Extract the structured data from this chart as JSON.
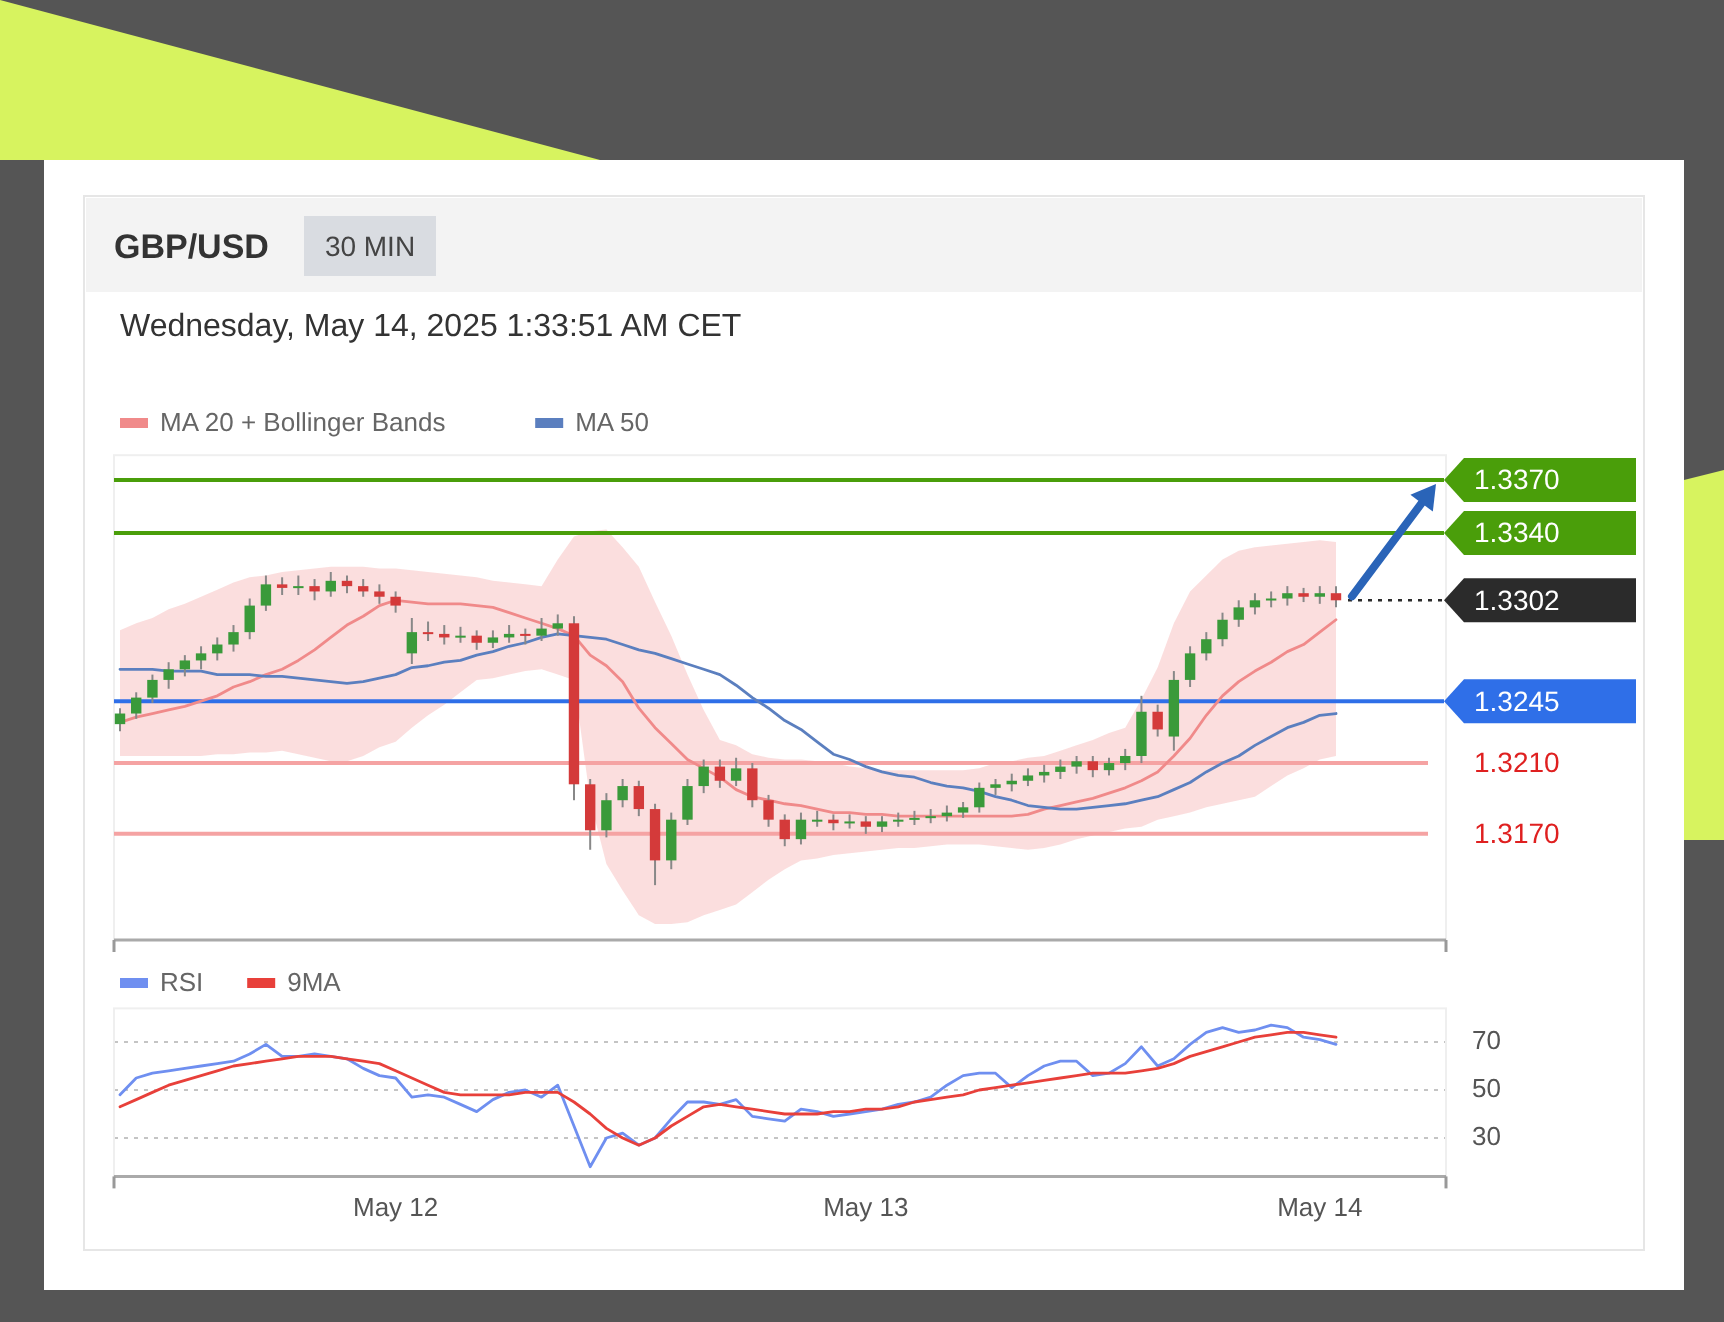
{
  "chart_data": [
    {
      "type": "candlestick",
      "title": "GBP/USD",
      "annotations": [
        "30 MIN",
        "Wednesday, May 14, 2025 1:33:51 AM CET"
      ],
      "categories": [
        null,
        null,
        null,
        null,
        null,
        null,
        null,
        null,
        null,
        null,
        null,
        null,
        null,
        null,
        null,
        null,
        null,
        null,
        null,
        null,
        null,
        null,
        null,
        null,
        null,
        null,
        null,
        null,
        null,
        null,
        null,
        null,
        null,
        null,
        null,
        null,
        null,
        null,
        null,
        null,
        null,
        null,
        null,
        null,
        null,
        null,
        null,
        null,
        null,
        null,
        null,
        null,
        null,
        null,
        null,
        null,
        null,
        null,
        null,
        null,
        null,
        null,
        null,
        null,
        null,
        null,
        null,
        null,
        null,
        null,
        null,
        null,
        null,
        null,
        null,
        null
      ],
      "ohlc": [
        [
          1.3232,
          1.3241,
          1.3228,
          1.3238
        ],
        [
          1.3238,
          1.325,
          1.3235,
          1.3247
        ],
        [
          1.3247,
          1.326,
          1.3244,
          1.3257
        ],
        [
          1.3257,
          1.3267,
          1.3252,
          1.3263
        ],
        [
          1.3263,
          1.3271,
          1.3259,
          1.3268
        ],
        [
          1.3268,
          1.3276,
          1.3263,
          1.3272
        ],
        [
          1.3272,
          1.3281,
          1.3268,
          1.3277
        ],
        [
          1.3277,
          1.3288,
          1.3273,
          1.3284
        ],
        [
          1.3284,
          1.3303,
          1.328,
          1.3299
        ],
        [
          1.3299,
          1.3316,
          1.3296,
          1.3311
        ],
        [
          1.3311,
          1.3315,
          1.3305,
          1.3309
        ],
        [
          1.3309,
          1.3316,
          1.3305,
          1.331
        ],
        [
          1.331,
          1.3314,
          1.3302,
          1.3307
        ],
        [
          1.3307,
          1.3318,
          1.3304,
          1.3313
        ],
        [
          1.3313,
          1.3316,
          1.3306,
          1.331
        ],
        [
          1.331,
          1.3314,
          1.3304,
          1.3307
        ],
        [
          1.3307,
          1.3311,
          1.33,
          1.3304
        ],
        [
          1.3304,
          1.3307,
          1.3295,
          1.3299
        ],
        [
          1.3272,
          1.3292,
          1.3266,
          1.3284
        ],
        [
          1.3284,
          1.329,
          1.3279,
          1.3283
        ],
        [
          1.3283,
          1.3288,
          1.3277,
          1.3281
        ],
        [
          1.3281,
          1.3287,
          1.3278,
          1.3282
        ],
        [
          1.3282,
          1.3285,
          1.3274,
          1.3278
        ],
        [
          1.3278,
          1.3285,
          1.3275,
          1.3281
        ],
        [
          1.3281,
          1.3288,
          1.3278,
          1.3283
        ],
        [
          1.3283,
          1.3286,
          1.3277,
          1.3282
        ],
        [
          1.3282,
          1.3292,
          1.3279,
          1.3286
        ],
        [
          1.3286,
          1.3294,
          1.3282,
          1.3289
        ],
        [
          1.3289,
          1.3293,
          1.3189,
          1.3198
        ],
        [
          1.3198,
          1.3201,
          1.3161,
          1.3172
        ],
        [
          1.3172,
          1.3193,
          1.3168,
          1.3189
        ],
        [
          1.3189,
          1.3201,
          1.3185,
          1.3197
        ],
        [
          1.3197,
          1.32,
          1.318,
          1.3184
        ],
        [
          1.3184,
          1.3187,
          1.3141,
          1.3155
        ],
        [
          1.3155,
          1.3182,
          1.315,
          1.3178
        ],
        [
          1.3178,
          1.3201,
          1.3175,
          1.3197
        ],
        [
          1.3197,
          1.3212,
          1.3193,
          1.3208
        ],
        [
          1.3208,
          1.3212,
          1.3196,
          1.32
        ],
        [
          1.32,
          1.3213,
          1.3197,
          1.3207
        ],
        [
          1.3207,
          1.321,
          1.3185,
          1.3189
        ],
        [
          1.3189,
          1.3192,
          1.3174,
          1.3178
        ],
        [
          1.3178,
          1.3181,
          1.3163,
          1.3167
        ],
        [
          1.3167,
          1.3182,
          1.3164,
          1.3178
        ],
        [
          1.3178,
          1.3183,
          1.3174,
          1.3178
        ],
        [
          1.3178,
          1.3181,
          1.3172,
          1.3176
        ],
        [
          1.3176,
          1.3181,
          1.3173,
          1.3177
        ],
        [
          1.3177,
          1.318,
          1.317,
          1.3174
        ],
        [
          1.3174,
          1.318,
          1.3171,
          1.3177
        ],
        [
          1.3177,
          1.3182,
          1.3174,
          1.3178
        ],
        [
          1.3178,
          1.3183,
          1.3175,
          1.3179
        ],
        [
          1.3179,
          1.3184,
          1.3176,
          1.318
        ],
        [
          1.318,
          1.3186,
          1.3177,
          1.3182
        ],
        [
          1.3182,
          1.3188,
          1.3179,
          1.3185
        ],
        [
          1.3185,
          1.3199,
          1.3182,
          1.3196
        ],
        [
          1.3196,
          1.3201,
          1.3192,
          1.3198
        ],
        [
          1.3198,
          1.3204,
          1.3194,
          1.32
        ],
        [
          1.32,
          1.3207,
          1.3197,
          1.3203
        ],
        [
          1.3203,
          1.3209,
          1.3199,
          1.3205
        ],
        [
          1.3205,
          1.3212,
          1.3201,
          1.3208
        ],
        [
          1.3208,
          1.3214,
          1.3204,
          1.3211
        ],
        [
          1.3211,
          1.3214,
          1.3202,
          1.3206
        ],
        [
          1.3206,
          1.3213,
          1.3203,
          1.321
        ],
        [
          1.321,
          1.3218,
          1.3206,
          1.3214
        ],
        [
          1.3214,
          1.3248,
          1.321,
          1.3239
        ],
        [
          1.3239,
          1.3243,
          1.3225,
          1.3229
        ],
        [
          1.3225,
          1.3262,
          1.3217,
          1.3257
        ],
        [
          1.3257,
          1.3276,
          1.3253,
          1.3272
        ],
        [
          1.3272,
          1.3284,
          1.3268,
          1.328
        ],
        [
          1.328,
          1.3295,
          1.3276,
          1.3291
        ],
        [
          1.3291,
          1.3302,
          1.3287,
          1.3298
        ],
        [
          1.3298,
          1.3306,
          1.3294,
          1.3302
        ],
        [
          1.3302,
          1.3307,
          1.3298,
          1.3303
        ],
        [
          1.3303,
          1.331,
          1.3299,
          1.3306
        ],
        [
          1.3306,
          1.3309,
          1.3301,
          1.3304
        ],
        [
          1.3304,
          1.331,
          1.33,
          1.3306
        ],
        [
          1.3306,
          1.331,
          1.3298,
          1.3302
        ]
      ],
      "series": [
        {
          "name": "MA 20 + Bollinger Bands",
          "type": "line",
          "color": "#f08a8a",
          "values": [
            1.3233,
            1.3236,
            1.3238,
            1.324,
            1.3242,
            1.3245,
            1.3248,
            1.3253,
            1.3256,
            1.326,
            1.3263,
            1.3268,
            1.3274,
            1.3281,
            1.3288,
            1.3293,
            1.3299,
            1.3302,
            1.3301,
            1.33,
            1.33,
            1.33,
            1.3299,
            1.3298,
            1.3295,
            1.3292,
            1.3289,
            1.3286,
            1.3282,
            1.3271,
            1.3265,
            1.3256,
            1.3241,
            1.323,
            1.3221,
            1.3212,
            1.3207,
            1.3202,
            1.3195,
            1.3191,
            1.3189,
            1.3187,
            1.3186,
            1.3184,
            1.3182,
            1.3182,
            1.3181,
            1.3181,
            1.318,
            1.318,
            1.318,
            1.318,
            1.318,
            1.318,
            1.318,
            1.318,
            1.3181,
            1.3184,
            1.3186,
            1.3188,
            1.319,
            1.3193,
            1.3196,
            1.32,
            1.3205,
            1.3214,
            1.3224,
            1.3237,
            1.3248,
            1.3256,
            1.3262,
            1.3267,
            1.3273,
            1.3277,
            1.3284,
            1.3291
          ],
          "lower": [
            1.3214,
            1.3214,
            1.3214,
            1.3214,
            1.3214,
            1.3214,
            1.3215,
            1.3215,
            1.3216,
            1.3216,
            1.3217,
            1.3215,
            1.3213,
            1.3211,
            1.3211,
            1.3214,
            1.3219,
            1.3222,
            1.323,
            1.3237,
            1.3243,
            1.325,
            1.3257,
            1.3258,
            1.326,
            1.3262,
            1.3263,
            1.326,
            1.3257,
            1.3189,
            1.3153,
            1.3138,
            1.3124,
            1.3119,
            1.3119,
            1.312,
            1.3124,
            1.3127,
            1.313,
            1.3137,
            1.3144,
            1.315,
            1.3155,
            1.3156,
            1.3158,
            1.3159,
            1.316,
            1.3161,
            1.3162,
            1.3162,
            1.3163,
            1.3164,
            1.3164,
            1.3164,
            1.3163,
            1.3162,
            1.3161,
            1.3162,
            1.3164,
            1.3167,
            1.3169,
            1.3171,
            1.3173,
            1.3174,
            1.3178,
            1.318,
            1.3182,
            1.3185,
            1.3187,
            1.3189,
            1.3191,
            1.3197,
            1.3203,
            1.3207,
            1.3212,
            1.3214
          ],
          "upper": [
            1.3285,
            1.3289,
            1.3292,
            1.3297,
            1.33,
            1.3304,
            1.3308,
            1.3312,
            1.3315,
            1.3316,
            1.3318,
            1.3319,
            1.332,
            1.3321,
            1.3321,
            1.3321,
            1.332,
            1.332,
            1.3319,
            1.3318,
            1.3317,
            1.3316,
            1.3315,
            1.3313,
            1.3312,
            1.3311,
            1.331,
            1.3325,
            1.3338,
            1.3341,
            1.3342,
            1.3332,
            1.3321,
            1.3301,
            1.3282,
            1.326,
            1.324,
            1.3223,
            1.322,
            1.3215,
            1.3213,
            1.3212,
            1.3212,
            1.3211,
            1.321,
            1.3208,
            1.3207,
            1.3206,
            1.3206,
            1.3206,
            1.3206,
            1.3206,
            1.3206,
            1.3207,
            1.321,
            1.3211,
            1.3213,
            1.3214,
            1.3217,
            1.322,
            1.3223,
            1.3227,
            1.323,
            1.3246,
            1.3264,
            1.3289,
            1.3307,
            1.3316,
            1.3325,
            1.333,
            1.3332,
            1.3333,
            1.3334,
            1.3335,
            1.3336,
            1.3335
          ]
        },
        {
          "name": "MA 50",
          "type": "line",
          "color": "#5b7fbf",
          "values": [
            1.3263,
            1.3263,
            1.3263,
            1.3262,
            1.3262,
            1.3262,
            1.326,
            1.326,
            1.326,
            1.3259,
            1.3259,
            1.3258,
            1.3257,
            1.3256,
            1.3255,
            1.3256,
            1.3258,
            1.326,
            1.3264,
            1.3265,
            1.3267,
            1.3268,
            1.3271,
            1.3273,
            1.3276,
            1.3278,
            1.3281,
            1.3283,
            1.3282,
            1.3281,
            1.328,
            1.3277,
            1.3274,
            1.3272,
            1.3269,
            1.3266,
            1.3263,
            1.326,
            1.3254,
            1.3247,
            1.3241,
            1.3234,
            1.3229,
            1.3222,
            1.3215,
            1.3212,
            1.3208,
            1.3205,
            1.3203,
            1.3202,
            1.3199,
            1.3197,
            1.3196,
            1.3194,
            1.3191,
            1.3189,
            1.3186,
            1.3185,
            1.3184,
            1.3184,
            1.3185,
            1.3186,
            1.3187,
            1.3189,
            1.3191,
            1.3195,
            1.3199,
            1.3205,
            1.321,
            1.3214,
            1.322,
            1.3225,
            1.323,
            1.3233,
            1.3237,
            1.3238
          ]
        }
      ],
      "ylim": [
        1.311,
        1.3384
      ],
      "legend": "top left",
      "ref_lines": [
        {
          "axis": "y",
          "value": 1.337,
          "label": "1.3370",
          "color": "#4a9e0a"
        },
        {
          "axis": "y",
          "value": 1.334,
          "label": "1.3340",
          "color": "#4a9e0a"
        },
        {
          "axis": "y",
          "value": 1.3302,
          "label": "1.3302",
          "color": "#2b2b2b",
          "line_style": "dotted"
        },
        {
          "axis": "y",
          "value": 1.3245,
          "label": "1.3245",
          "color": "#2f6fe8"
        },
        {
          "axis": "y",
          "value": 1.321,
          "label": "1.3210",
          "color": "#f5a3a3"
        },
        {
          "axis": "y",
          "value": 1.317,
          "label": "1.3170",
          "color": "#f5a3a3"
        }
      ]
    },
    {
      "type": "line",
      "categories": [
        null,
        null,
        null,
        null,
        null,
        null,
        null,
        null,
        null,
        null,
        null,
        null,
        null,
        null,
        null,
        null,
        null,
        "May 12",
        null,
        null,
        null,
        null,
        null,
        null,
        null,
        null,
        null,
        null,
        null,
        null,
        null,
        null,
        null,
        null,
        null,
        null,
        null,
        null,
        null,
        null,
        null,
        null,
        null,
        null,
        null,
        null,
        "May 13",
        null,
        null,
        null,
        null,
        null,
        null,
        null,
        null,
        null,
        null,
        null,
        null,
        null,
        null,
        null,
        null,
        null,
        null,
        null,
        null,
        null,
        null,
        null,
        null,
        null,
        null,
        null,
        "May 14",
        null
      ],
      "series": [
        {
          "name": "RSI",
          "color": "#6f8ff0",
          "values": [
            48,
            55,
            57,
            58,
            59,
            60,
            61,
            62,
            65,
            69,
            64,
            64,
            65,
            64,
            63,
            59,
            56,
            55,
            47,
            48,
            47,
            44,
            41,
            46,
            49,
            50,
            47,
            52,
            35,
            18,
            30,
            32,
            27,
            30,
            38,
            45,
            45,
            44,
            46,
            39,
            38,
            37,
            42,
            41,
            39,
            40,
            41,
            42,
            44,
            45,
            47,
            52,
            56,
            57,
            57,
            51,
            56,
            60,
            62,
            62,
            56,
            57,
            61,
            68,
            60,
            63,
            69,
            74,
            76,
            74,
            75,
            77,
            76,
            72,
            71,
            69
          ]
        },
        {
          "name": "9MA",
          "color": "#e8403a",
          "values": [
            43,
            46,
            49,
            52,
            54,
            56,
            58,
            60,
            61,
            62,
            63,
            64,
            64,
            64,
            63,
            62,
            61,
            58,
            55,
            52,
            49,
            48,
            48,
            48,
            48,
            49,
            49,
            49,
            45,
            40,
            34,
            30,
            27,
            30,
            35,
            39,
            43,
            44,
            43,
            42,
            41,
            40,
            40,
            40,
            41,
            41,
            42,
            42,
            43,
            45,
            46,
            47,
            48,
            50,
            51,
            52,
            53,
            54,
            55,
            56,
            57,
            57,
            57,
            58,
            59,
            61,
            64,
            66,
            68,
            70,
            72,
            73,
            74,
            74,
            73,
            72
          ]
        }
      ],
      "ylim": [
        14,
        84
      ],
      "yticks": [
        30,
        50,
        70
      ],
      "grid": "y",
      "legend": "top left"
    }
  ]
}
